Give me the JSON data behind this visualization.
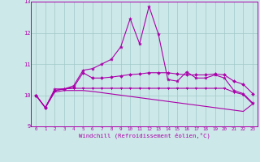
{
  "xlabel": "Windchill (Refroidissement éolien,°C)",
  "xlim_min": -0.5,
  "xlim_max": 23.5,
  "ylim_min": 9,
  "ylim_max": 13,
  "yticks": [
    9,
    10,
    11,
    12,
    13
  ],
  "xticks": [
    0,
    1,
    2,
    3,
    4,
    5,
    6,
    7,
    8,
    9,
    10,
    11,
    12,
    13,
    14,
    15,
    16,
    17,
    18,
    19,
    20,
    21,
    22,
    23
  ],
  "background_color": "#cde8e8",
  "grid_color": "#a0c8c8",
  "line_color": "#aa00aa",
  "line1_y": [
    10.0,
    9.6,
    10.2,
    10.2,
    10.3,
    10.8,
    10.85,
    11.0,
    11.15,
    11.55,
    12.45,
    11.65,
    12.85,
    11.95,
    10.5,
    10.45,
    10.75,
    10.55,
    10.55,
    10.65,
    10.55,
    10.15,
    10.05,
    9.75
  ],
  "line2_y": [
    10.0,
    9.6,
    10.15,
    10.2,
    10.25,
    10.72,
    10.55,
    10.55,
    10.58,
    10.62,
    10.66,
    10.68,
    10.72,
    10.72,
    10.72,
    10.68,
    10.65,
    10.65,
    10.65,
    10.68,
    10.65,
    10.45,
    10.35,
    10.05
  ],
  "line3_y": [
    10.0,
    9.6,
    10.15,
    10.2,
    10.22,
    10.22,
    10.22,
    10.22,
    10.22,
    10.22,
    10.22,
    10.22,
    10.22,
    10.22,
    10.22,
    10.22,
    10.22,
    10.22,
    10.22,
    10.22,
    10.22,
    10.1,
    10.02,
    9.72
  ],
  "line4_y": [
    10.0,
    9.6,
    10.1,
    10.15,
    10.15,
    10.15,
    10.12,
    10.08,
    10.04,
    10.0,
    9.96,
    9.92,
    9.88,
    9.84,
    9.8,
    9.76,
    9.72,
    9.68,
    9.64,
    9.6,
    9.56,
    9.52,
    9.48,
    9.72
  ]
}
